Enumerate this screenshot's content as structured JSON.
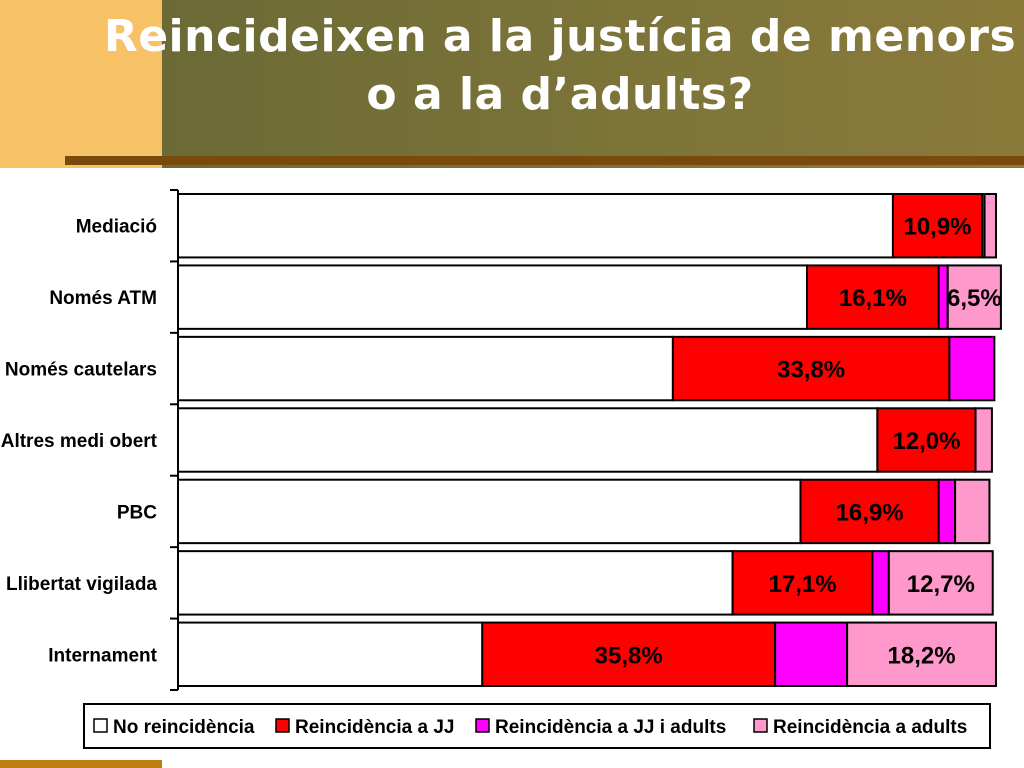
{
  "title_line1": "Reincideixen a la justícia de menors",
  "title_line2": "o a la d’adults?",
  "chart_data": {
    "type": "bar",
    "orientation": "horizontal",
    "stacked": "percent",
    "categories": [
      "Mediació",
      "Només ATM",
      "Només cautelars",
      "Altres medi obert",
      "PBC",
      "Llibertat vigilada",
      "Internament"
    ],
    "series": [
      {
        "name": "No reincidència",
        "color": "#ffffff",
        "values": [
          87.4,
          76.9,
          60.5,
          85.5,
          76.1,
          67.8,
          37.2
        ]
      },
      {
        "name": "Reincidència a JJ",
        "color": "#ff0000",
        "values": [
          10.9,
          16.1,
          33.8,
          12.0,
          16.9,
          17.1,
          35.8
        ]
      },
      {
        "name": "Reincidència a JJ i adults",
        "color": "#ff00ff",
        "values": [
          0.3,
          1.1,
          5.5,
          0.0,
          2.0,
          2.0,
          8.8
        ]
      },
      {
        "name": "Reincidència a adults",
        "color": "#ff99cc",
        "values": [
          1.4,
          6.5,
          0.0,
          2.0,
          4.2,
          12.7,
          18.2
        ]
      }
    ],
    "data_labels": [
      [
        "",
        "10,9%",
        "",
        ""
      ],
      [
        "",
        "16,1%",
        "",
        "6,5%"
      ],
      [
        "",
        "33,8%",
        "",
        ""
      ],
      [
        "",
        "12,0%",
        "",
        ""
      ],
      [
        "",
        "16,9%",
        "",
        ""
      ],
      [
        "",
        "17,1%",
        "",
        "12,7%"
      ],
      [
        "",
        "35,8%",
        "",
        "18,2%"
      ]
    ],
    "xlim": [
      0,
      100
    ],
    "legend_position": "bottom"
  }
}
